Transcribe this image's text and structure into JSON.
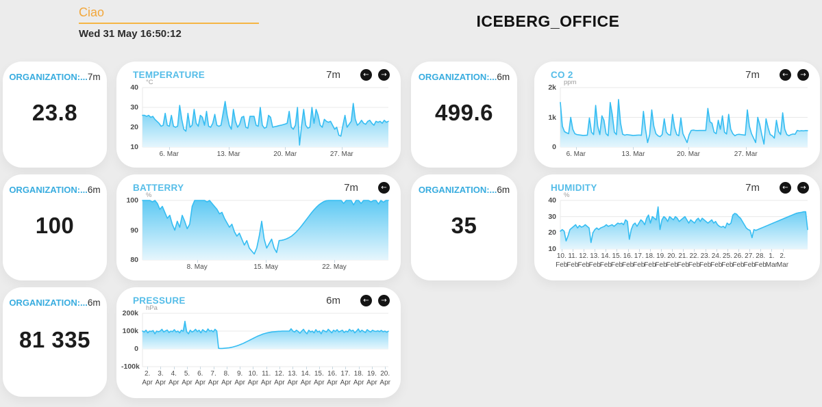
{
  "page": {
    "greeting": "Ciao",
    "datetime": "Wed 31 May 16:50:12",
    "title": "ICEBERG_OFFICE"
  },
  "icons": {
    "prev": "←",
    "next": "→"
  },
  "colors": {
    "accent_orange": "#f2a73b",
    "stat_label_blue": "#38acdf",
    "chart_title_blue": "#55bde8",
    "line_blue": "#35bdf2",
    "fill_top": "#5ec9f3",
    "fill_bottom": "#e6f6fd",
    "value_dark": "#1c1c1c"
  },
  "stat_cards": [
    {
      "label": "ORGANIZATION:...",
      "period": "7m",
      "value": "23.8"
    },
    {
      "label": "ORGANIZATION:...",
      "period": "6m",
      "value": "499.6"
    },
    {
      "label": "ORGANIZATION:...",
      "period": "6m",
      "value": "100"
    },
    {
      "label": "ORGANIZATION:...",
      "period": "6m",
      "value": "35"
    },
    {
      "label": "ORGANIZATION:...",
      "period": "6m",
      "value": "81 335"
    }
  ],
  "chart_data": [
    {
      "id": "temperature",
      "type": "area",
      "title": "TEMPERATURE",
      "period": "7m",
      "unit": "°C",
      "ylim": [
        10,
        40
      ],
      "baseline": 10,
      "grid": true,
      "legend": "none",
      "y_ticks": [
        {
          "label": "40",
          "value": 40
        },
        {
          "label": "30",
          "value": 30
        },
        {
          "label": "20",
          "value": 20
        },
        {
          "label": "10",
          "value": 10
        }
      ],
      "x_labels": [
        {
          "l1": "6. Mar",
          "f": 0.108
        },
        {
          "l1": "13. Mar",
          "f": 0.35
        },
        {
          "l1": "20. Mar",
          "f": 0.58
        },
        {
          "l1": "27. Mar",
          "f": 0.81
        }
      ],
      "values": [
        26,
        26,
        25.5,
        26,
        25,
        25.5,
        24,
        23,
        22,
        20.5,
        21,
        27,
        21,
        20.5,
        26,
        20.5,
        20,
        20.5,
        31,
        24,
        19,
        18,
        27,
        20,
        21,
        29,
        22,
        20.5,
        26,
        25,
        21,
        28,
        20.5,
        20,
        22,
        26.5,
        21,
        20.5,
        21,
        27,
        33,
        26,
        21,
        19,
        29,
        23,
        20,
        21.5,
        25,
        25.5,
        20,
        19.5,
        25.5,
        25.5,
        25.5,
        21,
        20.5,
        30,
        21,
        19.5,
        20,
        26,
        25,
        20,
        20.3,
        20.5,
        20.8,
        21,
        21.3,
        21.6,
        22,
        28,
        20,
        19,
        21,
        30,
        11,
        21,
        29,
        21,
        19.5,
        20,
        30,
        22,
        29,
        26,
        21,
        20,
        24,
        23,
        22.5,
        23,
        21,
        19,
        20,
        16,
        15.5,
        21,
        26,
        20,
        21.5,
        23,
        32,
        24,
        21,
        22,
        23.5,
        22,
        21.5,
        23,
        23.5,
        22,
        21,
        23,
        22.5,
        23,
        22,
        23.5,
        22.5,
        23
      ]
    },
    {
      "id": "co2",
      "type": "area",
      "title": "CO 2",
      "period": "7m",
      "unit": "ppm",
      "ylim": [
        0,
        2000
      ],
      "baseline": 0,
      "grid": true,
      "legend": "none",
      "y_ticks": [
        {
          "label": "2k",
          "value": 2000
        },
        {
          "label": "1k",
          "value": 1000
        },
        {
          "label": "0",
          "value": 0
        }
      ],
      "x_labels": [
        {
          "l1": "6. Mar",
          "f": 0.063
        },
        {
          "l1": "13. Mar",
          "f": 0.295
        },
        {
          "l1": "20. Mar",
          "f": 0.518
        },
        {
          "l1": "27. Mar",
          "f": 0.75
        }
      ],
      "values": [
        1500,
        700,
        520,
        480,
        450,
        1000,
        600,
        450,
        420,
        410,
        400,
        390,
        395,
        400,
        980,
        500,
        420,
        1400,
        700,
        420,
        1050,
        900,
        450,
        380,
        1500,
        1100,
        500,
        420,
        1600,
        800,
        430,
        400,
        420,
        410,
        400,
        390,
        395,
        400,
        405,
        395,
        1200,
        600,
        150,
        420,
        1250,
        700,
        450,
        380,
        350,
        420,
        950,
        500,
        420,
        400,
        1100,
        650,
        420,
        380,
        980,
        450,
        300,
        150,
        420,
        560,
        570,
        560,
        555,
        560,
        558,
        560,
        560,
        1300,
        850,
        800,
        500,
        450,
        900,
        600,
        1050,
        500,
        440,
        1100,
        600,
        450,
        380,
        420,
        430,
        420,
        410,
        400,
        1250,
        700,
        450,
        300,
        150,
        1000,
        750,
        400,
        100,
        950,
        650,
        420,
        380,
        300,
        900,
        520,
        420,
        1150,
        600,
        420,
        380,
        420,
        440,
        430,
        560,
        540,
        550,
        545,
        555,
        550
      ]
    },
    {
      "id": "battery",
      "type": "area",
      "title": "BATTERRY",
      "period": "7m",
      "unit": "%",
      "ylim": [
        80,
        100
      ],
      "baseline": 80,
      "grid": true,
      "legend": "none",
      "y_ticks": [
        {
          "label": "100",
          "value": 100
        },
        {
          "label": "90",
          "value": 90
        },
        {
          "label": "80",
          "value": 80
        }
      ],
      "x_labels": [
        {
          "l1": "8. May",
          "f": 0.222
        },
        {
          "l1": "15. May",
          "f": 0.502
        },
        {
          "l1": "22. May",
          "f": 0.78
        }
      ],
      "values": [
        100,
        100,
        100,
        100,
        99.5,
        100,
        99,
        97,
        98,
        96,
        94,
        95,
        92,
        90,
        93,
        91,
        95,
        93,
        90.5,
        92,
        98,
        100,
        100,
        100,
        100,
        100,
        99.5,
        100,
        99,
        98,
        97,
        95.5,
        96,
        94,
        92.5,
        91,
        92,
        89.5,
        88,
        89,
        87,
        85,
        86.5,
        84,
        83,
        82,
        84,
        88,
        93,
        87,
        84,
        85.5,
        87,
        84,
        82.5,
        86.5,
        86.6,
        86.8,
        87.1,
        87.5,
        88,
        88.7,
        89.5,
        90.4,
        91.4,
        92.5,
        93.6,
        94.7,
        95.8,
        96.8,
        97.7,
        98.5,
        99.1,
        99.6,
        99.9,
        100,
        100,
        100,
        100,
        100,
        100,
        99,
        100,
        100,
        100,
        98.5,
        100,
        100,
        99,
        100,
        100,
        100,
        99.5,
        100,
        100,
        98.8,
        100,
        99.4,
        100,
        100
      ]
    },
    {
      "id": "humidity",
      "type": "area",
      "title": "HUMIDITY",
      "period": "7m",
      "unit": "%",
      "ylim": [
        10,
        40
      ],
      "baseline": 10,
      "grid": true,
      "legend": "none",
      "y_ticks": [
        {
          "label": "40",
          "value": 40
        },
        {
          "label": "30",
          "value": 30
        },
        {
          "label": "20",
          "value": 20
        },
        {
          "label": "10",
          "value": 10
        }
      ],
      "x_labels": [
        {
          "l1": "10.",
          "l2": "Feb",
          "f": 0.005
        },
        {
          "l1": "11.",
          "l2": "Feb",
          "f": 0.0497
        },
        {
          "l1": "12.",
          "l2": "Feb",
          "f": 0.0944
        },
        {
          "l1": "13.",
          "l2": "Feb",
          "f": 0.1391
        },
        {
          "l1": "14.",
          "l2": "Feb",
          "f": 0.1838
        },
        {
          "l1": "15.",
          "l2": "Feb",
          "f": 0.2285
        },
        {
          "l1": "16.",
          "l2": "Feb",
          "f": 0.2732
        },
        {
          "l1": "17.",
          "l2": "Feb",
          "f": 0.3179
        },
        {
          "l1": "18.",
          "l2": "Feb",
          "f": 0.3626
        },
        {
          "l1": "19.",
          "l2": "Feb",
          "f": 0.4073
        },
        {
          "l1": "20.",
          "l2": "Feb",
          "f": 0.452
        },
        {
          "l1": "21.",
          "l2": "Feb",
          "f": 0.4967
        },
        {
          "l1": "22.",
          "l2": "Feb",
          "f": 0.5414
        },
        {
          "l1": "23.",
          "l2": "Feb",
          "f": 0.5861
        },
        {
          "l1": "24.",
          "l2": "Feb",
          "f": 0.6308
        },
        {
          "l1": "25.",
          "l2": "Feb",
          "f": 0.6755
        },
        {
          "l1": "26.",
          "l2": "Feb",
          "f": 0.7202
        },
        {
          "l1": "27.",
          "l2": "Feb",
          "f": 0.7649
        },
        {
          "l1": "28.",
          "l2": "Feb",
          "f": 0.8096
        },
        {
          "l1": "1.",
          "l2": "Mar",
          "f": 0.8543
        },
        {
          "l1": "2.",
          "l2": "Mar",
          "f": 0.899
        }
      ],
      "values": [
        21,
        22,
        21,
        15,
        18,
        22,
        23,
        24,
        25,
        23,
        24.5,
        23.5,
        24,
        25,
        24,
        23,
        14,
        20,
        22,
        23,
        22,
        23,
        23.5,
        24,
        25,
        24,
        24.5,
        25,
        24,
        25,
        26,
        25.5,
        26,
        25,
        28,
        27,
        16,
        22,
        25,
        26,
        24,
        26,
        28,
        27,
        25,
        29,
        31,
        26,
        30,
        29,
        28,
        36,
        22,
        28,
        30,
        29,
        27,
        30,
        29,
        28,
        30,
        29,
        27,
        28,
        29,
        30,
        28,
        26,
        28,
        27,
        26,
        28,
        29,
        27,
        29,
        28,
        27,
        26,
        27,
        28,
        26,
        27,
        25,
        24,
        23.5,
        24,
        23,
        26,
        25,
        26,
        31,
        32,
        31.5,
        30,
        29,
        27,
        25,
        23,
        22,
        21.5,
        17,
        22,
        21.5,
        22,
        22.5,
        23,
        23.5,
        24,
        24.5,
        25,
        25.5,
        26,
        26.5,
        27,
        27.5,
        28,
        28.5,
        29,
        29.5,
        30,
        30.5,
        31,
        31.5,
        32,
        32.3,
        32.5,
        32.7,
        33,
        33,
        22
      ]
    },
    {
      "id": "pressure",
      "type": "area",
      "title": "PRESSURE",
      "period": "6m",
      "unit": "hPa",
      "ylim": [
        -100,
        200
      ],
      "baseline": 0,
      "grid": true,
      "legend": "none",
      "y_ticks": [
        {
          "label": "200k",
          "value": 200
        },
        {
          "label": "100k",
          "value": 100
        },
        {
          "label": "0",
          "value": 0
        },
        {
          "label": "-100k",
          "value": -100
        }
      ],
      "x_labels": [
        {
          "l1": "2.",
          "l2": "Apr",
          "f": 0.02
        },
        {
          "l1": "3.",
          "l2": "Apr",
          "f": 0.0737
        },
        {
          "l1": "4.",
          "l2": "Apr",
          "f": 0.1274
        },
        {
          "l1": "5.",
          "l2": "Apr",
          "f": 0.1811
        },
        {
          "l1": "6.",
          "l2": "Apr",
          "f": 0.2348
        },
        {
          "l1": "7.",
          "l2": "Apr",
          "f": 0.2885
        },
        {
          "l1": "8.",
          "l2": "Apr",
          "f": 0.3422
        },
        {
          "l1": "9.",
          "l2": "Apr",
          "f": 0.3959
        },
        {
          "l1": "10.",
          "l2": "Apr",
          "f": 0.4496
        },
        {
          "l1": "11.",
          "l2": "Apr",
          "f": 0.5033
        },
        {
          "l1": "12.",
          "l2": "Apr",
          "f": 0.557
        },
        {
          "l1": "13.",
          "l2": "Apr",
          "f": 0.6107
        },
        {
          "l1": "14.",
          "l2": "Apr",
          "f": 0.6644
        },
        {
          "l1": "15.",
          "l2": "Apr",
          "f": 0.7181
        },
        {
          "l1": "16.",
          "l2": "Apr",
          "f": 0.7718
        },
        {
          "l1": "17.",
          "l2": "Apr",
          "f": 0.8255
        },
        {
          "l1": "18.",
          "l2": "Apr",
          "f": 0.8792
        },
        {
          "l1": "19.",
          "l2": "Apr",
          "f": 0.9329
        },
        {
          "l1": "20.",
          "l2": "Apr",
          "f": 0.9866
        }
      ],
      "values": [
        100,
        95,
        105,
        90,
        100,
        98,
        103,
        85,
        100,
        96,
        100,
        110,
        95,
        101,
        106,
        92,
        100,
        97,
        108,
        95,
        100,
        90,
        105,
        99,
        155,
        96,
        85,
        105,
        95,
        100,
        110,
        97,
        105,
        90,
        108,
        100,
        95,
        112,
        100,
        104,
        96,
        110,
        100,
        3,
        2,
        2,
        3,
        4,
        5,
        6,
        8,
        10,
        13,
        16,
        19,
        23,
        27,
        31,
        36,
        41,
        46,
        51,
        56,
        61,
        66,
        71,
        75,
        79,
        83,
        86,
        89,
        91,
        93,
        95,
        96,
        97,
        98,
        99,
        99,
        100,
        100,
        100,
        100,
        100,
        113,
        100,
        95,
        105,
        98,
        88,
        100,
        110,
        95,
        85,
        105,
        95,
        100,
        90,
        108,
        95,
        100,
        85,
        105,
        100,
        95,
        110,
        100,
        90,
        105,
        98,
        108,
        95,
        100,
        105,
        92,
        100,
        95,
        110,
        100,
        105,
        90,
        100,
        112,
        95,
        105,
        98,
        92,
        108,
        100,
        95,
        105,
        100,
        98,
        102,
        97,
        104,
        96,
        100,
        94,
        99
      ]
    }
  ]
}
